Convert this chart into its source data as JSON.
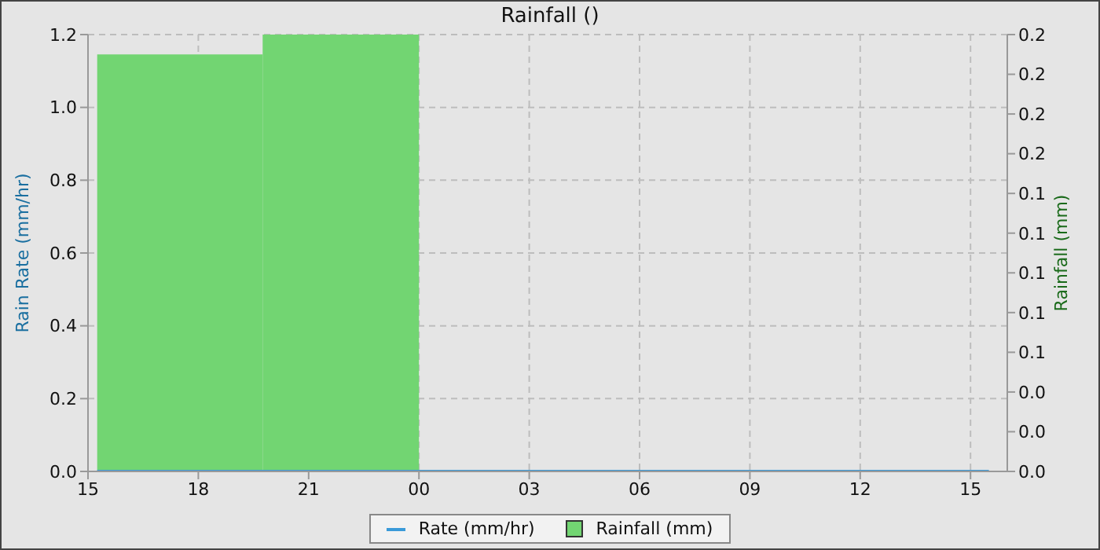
{
  "chart_data": {
    "type": "line",
    "title": "Rainfall ()",
    "ylabel": "Rain Rate (mm/hr)",
    "y2label": "Rainfall (mm)",
    "xlim": [
      "2000-01-01T15:00",
      "2000-01-02T16:00"
    ],
    "xticks": [
      {
        "value": "2000-01-01T15:00",
        "label": "15"
      },
      {
        "value": "2000-01-01T18:00",
        "label": "18"
      },
      {
        "value": "2000-01-01T21:00",
        "label": "21"
      },
      {
        "value": "2000-01-02T00:00",
        "label": "00"
      },
      {
        "value": "2000-01-02T03:00",
        "label": "03"
      },
      {
        "value": "2000-01-02T06:00",
        "label": "06"
      },
      {
        "value": "2000-01-02T09:00",
        "label": "09"
      },
      {
        "value": "2000-01-02T12:00",
        "label": "12"
      },
      {
        "value": "2000-01-02T15:00",
        "label": "15"
      }
    ],
    "ylim": [
      0,
      1.2
    ],
    "yticks": [
      {
        "value": 0,
        "label": "0.0"
      },
      {
        "value": 0.2,
        "label": "0.2"
      },
      {
        "value": 0.4,
        "label": "0.4"
      },
      {
        "value": 0.6,
        "label": "0.6"
      },
      {
        "value": 0.8,
        "label": "0.8"
      },
      {
        "value": 1,
        "label": "1.0"
      },
      {
        "value": 1.2,
        "label": "1.2"
      }
    ],
    "y2lim": [
      0,
      0.22
    ],
    "y2ticks": [
      {
        "value": 0,
        "label": "0.0"
      },
      {
        "value": 0.02,
        "label": "0.0"
      },
      {
        "value": 0.04,
        "label": "0.0"
      },
      {
        "value": 0.06,
        "label": "0.1"
      },
      {
        "value": 0.08,
        "label": "0.1"
      },
      {
        "value": 0.1,
        "label": "0.1"
      },
      {
        "value": 0.12,
        "label": "0.1"
      },
      {
        "value": 0.14,
        "label": "0.1"
      },
      {
        "value": 0.16,
        "label": "0.2"
      },
      {
        "value": 0.18,
        "label": "0.2"
      },
      {
        "value": 0.2,
        "label": "0.2"
      },
      {
        "value": 0.22,
        "label": "0.2"
      }
    ],
    "grid": true,
    "legend": "bottom",
    "series": [
      {
        "name": "Rate (mm/hr)",
        "type": "line",
        "color": "#3a9ad9",
        "x": [
          "2000-01-01T15:15",
          "2000-01-02T15:30"
        ],
        "values": [
          0,
          0
        ]
      },
      {
        "name": "Rainfall (mm)",
        "type": "histogram",
        "axis": "y2",
        "color": "#72d572",
        "bins": [
          "2000-01-01T15:15",
          "2000-01-01T19:45",
          "2000-01-02T00:00"
        ],
        "values": [
          0.21,
          0.22
        ]
      }
    ]
  }
}
